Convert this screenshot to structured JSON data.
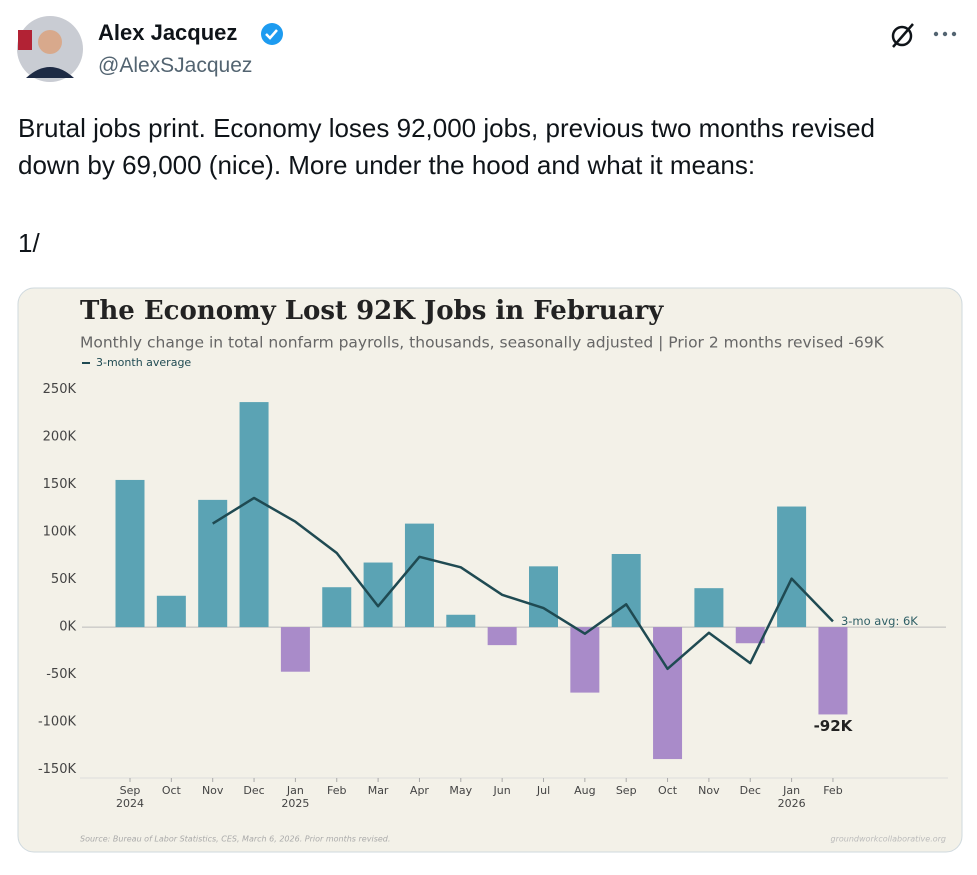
{
  "post": {
    "author_name": "Alex Jacquez",
    "handle": "@AlexSJacquez",
    "text": "Brutal jobs print. Economy loses 92,000 jobs, previous two months revised down by 69,000 (nice). More under the hood and what it means:",
    "thread_marker": "1/"
  },
  "chart_data": {
    "type": "bar",
    "title": "The Economy Lost 92K Jobs in February",
    "subtitle": "Monthly change in total nonfarm payrolls, thousands, seasonally adjusted | Prior 2 months revised -69K",
    "source": "Source: Bureau of Labor Statistics, CES, March 6, 2026. Prior months revised.",
    "credit": "groundworkcollaborative.org",
    "categories": [
      "Sep",
      "Oct",
      "Nov",
      "Dec",
      "Jan",
      "Feb",
      "Mar",
      "Apr",
      "May",
      "Jun",
      "Jul",
      "Aug",
      "Sep",
      "Oct",
      "Nov",
      "Dec",
      "Jan",
      "Feb"
    ],
    "category_years": [
      "2024",
      null,
      null,
      null,
      "2025",
      null,
      null,
      null,
      null,
      null,
      null,
      null,
      null,
      null,
      null,
      null,
      "2026",
      null
    ],
    "series": [
      {
        "positive_color": "#5ba3b4",
        "negative_color": "#a98bc9",
        "values": [
          155,
          33,
          134,
          237,
          -47,
          42,
          68,
          109,
          13,
          -19,
          64,
          -69,
          77,
          -139,
          41,
          -17,
          127,
          -92
        ],
        "value_labels": [
          null,
          null,
          null,
          null,
          null,
          null,
          null,
          null,
          null,
          null,
          null,
          null,
          null,
          null,
          null,
          null,
          null,
          "-92K"
        ]
      },
      {
        "name": "3-month average",
        "type": "line",
        "color": "#1f4a52",
        "values": [
          null,
          null,
          109,
          136,
          111,
          78,
          22,
          74,
          63,
          34,
          20,
          -7,
          24,
          -44,
          -6,
          -38,
          51,
          6
        ]
      }
    ],
    "annotations": [
      {
        "text": "3-mo avg: 6K",
        "series": 1,
        "index": 17
      }
    ],
    "ylim": [
      -160,
      255
    ],
    "yticks": [
      {
        "value": 250,
        "label": "250K"
      },
      {
        "value": 200,
        "label": "200K"
      },
      {
        "value": 150,
        "label": "150K"
      },
      {
        "value": 100,
        "label": "100K"
      },
      {
        "value": 50,
        "label": "50K"
      },
      {
        "value": 0,
        "label": "0K"
      },
      {
        "value": -50,
        "label": "-50K"
      },
      {
        "value": -100,
        "label": "-100K"
      },
      {
        "value": -150,
        "label": "-150K"
      }
    ],
    "grid": false
  }
}
